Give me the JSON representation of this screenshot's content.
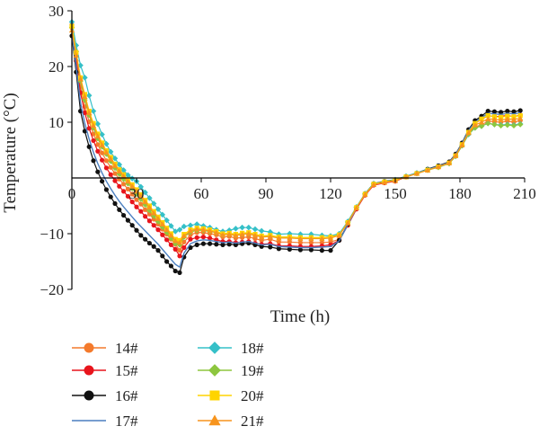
{
  "chart_data": {
    "type": "line",
    "xlabel": "Time (h)",
    "ylabel": "Temperature (°C)",
    "xlim": [
      0,
      210
    ],
    "ylim": [
      -20,
      30
    ],
    "x_ticks": [
      0,
      30,
      60,
      90,
      120,
      150,
      180,
      210
    ],
    "y_ticks": [
      -20,
      -10,
      10,
      20,
      30
    ],
    "x_tick_labels": [
      "0",
      "30",
      "60",
      "90",
      "120",
      "150",
      "180",
      "210"
    ],
    "y_tick_labels": [
      "−20",
      "−10",
      "10",
      "20",
      "30"
    ],
    "legend_position": "bottom-left",
    "x": [
      0,
      2,
      4,
      6,
      8,
      10,
      12,
      14,
      16,
      18,
      20,
      22,
      24,
      26,
      28,
      30,
      32,
      34,
      36,
      38,
      40,
      42,
      44,
      46,
      48,
      50,
      52,
      55,
      58,
      61,
      64,
      67,
      70,
      73,
      76,
      79,
      82,
      85,
      88,
      92,
      96,
      101,
      106,
      111,
      116,
      120,
      124,
      128,
      132,
      136,
      140,
      145,
      150,
      155,
      160,
      165,
      170,
      175,
      178,
      181,
      184,
      187,
      190,
      193,
      196,
      199,
      202,
      205,
      208
    ],
    "series": [
      {
        "name": "14#",
        "color": "#f47a2c",
        "marker": "circle",
        "values": [
          27.5,
          22.1,
          16.4,
          12.8,
          10.1,
          7.9,
          6.0,
          4.5,
          3.1,
          1.9,
          0.8,
          -0.2,
          -1.1,
          -2.0,
          -2.9,
          -3.9,
          -4.7,
          -5.7,
          -6.5,
          -7.4,
          -8.3,
          -9.2,
          -10.1,
          -11.0,
          -11.9,
          -13.0,
          -11.5,
          -10.2,
          -9.8,
          -9.8,
          -10.0,
          -10.2,
          -10.6,
          -10.5,
          -10.8,
          -10.7,
          -10.6,
          -10.9,
          -11.2,
          -11.0,
          -11.5,
          -11.5,
          -11.6,
          -11.6,
          -11.6,
          -11.5,
          -11.0,
          -8.5,
          -5.5,
          -3.0,
          -1.2,
          -0.8,
          -0.5,
          0.2,
          0.8,
          1.5,
          2.0,
          2.7,
          4.0,
          5.8,
          8.0,
          9.2,
          9.5,
          10.2,
          10.1,
          10.0,
          10.2,
          10.0,
          10.3
        ]
      },
      {
        "name": "15#",
        "color": "#e8141c",
        "marker": "circle",
        "values": [
          27.0,
          21.0,
          15.3,
          11.7,
          8.9,
          6.7,
          4.8,
          3.2,
          1.8,
          0.6,
          -0.5,
          -1.5,
          -2.4,
          -3.3,
          -4.3,
          -5.2,
          -6.0,
          -6.9,
          -7.7,
          -8.5,
          -9.3,
          -10.2,
          -11.1,
          -12.0,
          -12.8,
          -14.0,
          -12.5,
          -11.0,
          -10.7,
          -10.6,
          -10.8,
          -11.1,
          -11.4,
          -11.4,
          -11.6,
          -11.5,
          -11.4,
          -11.7,
          -11.9,
          -11.8,
          -12.2,
          -12.2,
          -12.3,
          -12.3,
          -12.2,
          -12.0,
          -11.2,
          -8.5,
          -5.6,
          -3.1,
          -1.3,
          -0.9,
          -0.6,
          0.2,
          0.8,
          1.5,
          2.1,
          2.8,
          4.1,
          6.0,
          8.3,
          9.8,
          10.5,
          11.2,
          11.0,
          11.1,
          11.2,
          11.0,
          11.3
        ]
      },
      {
        "name": "16#",
        "color": "#111111",
        "marker": "circle",
        "values": [
          25.5,
          19.0,
          12.0,
          8.4,
          5.6,
          3.1,
          1.1,
          -0.6,
          -2.1,
          -3.4,
          -4.6,
          -5.7,
          -6.7,
          -7.6,
          -8.5,
          -9.4,
          -10.3,
          -11.0,
          -11.7,
          -12.3,
          -13.0,
          -14.0,
          -15.0,
          -15.8,
          -16.7,
          -17.0,
          -14.2,
          -12.5,
          -12.0,
          -11.8,
          -11.8,
          -11.9,
          -12.0,
          -11.9,
          -12.0,
          -11.8,
          -11.7,
          -12.0,
          -12.3,
          -12.4,
          -12.7,
          -12.8,
          -12.9,
          -12.9,
          -13.0,
          -13.0,
          -11.2,
          -8.3,
          -5.3,
          -2.8,
          -1.0,
          -0.6,
          -0.3,
          0.3,
          0.9,
          1.6,
          2.2,
          2.9,
          4.3,
          6.3,
          8.7,
          10.3,
          11.1,
          12.0,
          11.9,
          11.8,
          12.0,
          11.9,
          12.1
        ]
      },
      {
        "name": "17#",
        "color": "#4a7fc1",
        "marker": "none",
        "values": [
          26.0,
          20.0,
          13.5,
          9.8,
          7.0,
          4.6,
          2.6,
          0.9,
          -0.6,
          -1.9,
          -3.1,
          -4.2,
          -5.2,
          -6.1,
          -7.0,
          -7.9,
          -8.7,
          -9.5,
          -10.3,
          -11.1,
          -11.9,
          -12.8,
          -13.7,
          -14.6,
          -15.5,
          -16.0,
          -13.5,
          -11.8,
          -11.3,
          -11.1,
          -11.2,
          -11.4,
          -11.6,
          -11.5,
          -11.7,
          -11.5,
          -11.4,
          -11.7,
          -12.0,
          -11.9,
          -12.3,
          -12.4,
          -12.5,
          -12.5,
          -12.4,
          -12.3,
          -11.3,
          -8.4,
          -5.4,
          -2.9,
          -1.1,
          -0.7,
          -0.4,
          0.3,
          0.9,
          1.5,
          2.1,
          2.8,
          4.2,
          6.2,
          8.5,
          10.0,
          10.8,
          11.6,
          11.5,
          11.4,
          11.6,
          11.5,
          11.7
        ]
      },
      {
        "name": "18#",
        "color": "#35c0c8",
        "marker": "diamond",
        "values": [
          28.0,
          23.8,
          20.2,
          18.0,
          14.8,
          12.0,
          9.7,
          7.8,
          6.1,
          4.7,
          3.5,
          2.4,
          1.4,
          0.5,
          -0.1,
          -0.6,
          -1.6,
          -2.6,
          -3.6,
          -4.6,
          -5.6,
          -6.6,
          -7.6,
          -8.6,
          -9.6,
          -9.3,
          -8.7,
          -8.5,
          -8.3,
          -8.6,
          -8.9,
          -9.3,
          -9.6,
          -9.4,
          -9.1,
          -8.9,
          -8.9,
          -9.2,
          -9.5,
          -9.7,
          -10.1,
          -10.0,
          -10.1,
          -10.1,
          -10.3,
          -10.4,
          -10.0,
          -7.8,
          -5.2,
          -2.8,
          -1.0,
          -0.7,
          -0.3,
          0.3,
          0.9,
          1.5,
          2.0,
          2.6,
          3.9,
          5.8,
          7.8,
          9.0,
          9.3,
          9.8,
          9.6,
          9.5,
          9.6,
          9.5,
          9.7
        ]
      },
      {
        "name": "19#",
        "color": "#8dc63f",
        "marker": "diamond",
        "values": [
          27.0,
          22.7,
          17.4,
          14.0,
          11.3,
          9.0,
          7.1,
          5.6,
          4.3,
          3.0,
          1.8,
          0.7,
          -0.2,
          -1.0,
          -1.9,
          -2.9,
          -3.8,
          -4.8,
          -5.8,
          -6.8,
          -7.8,
          -8.8,
          -9.8,
          -10.8,
          -11.8,
          -12.0,
          -10.6,
          -9.7,
          -9.4,
          -9.4,
          -9.6,
          -9.8,
          -10.2,
          -10.1,
          -10.3,
          -10.1,
          -10.0,
          -10.3,
          -10.5,
          -10.4,
          -10.6,
          -10.6,
          -10.7,
          -10.7,
          -10.7,
          -10.6,
          -10.2,
          -8.0,
          -5.3,
          -2.9,
          -1.1,
          -0.7,
          -0.4,
          0.2,
          0.8,
          1.4,
          1.9,
          2.6,
          3.9,
          5.8,
          7.9,
          9.0,
          9.3,
          9.8,
          9.6,
          9.4,
          9.5,
          9.4,
          9.6
        ]
      },
      {
        "name": "20#",
        "color": "#ffd400",
        "marker": "square",
        "values": [
          27.2,
          22.5,
          18.0,
          15.0,
          12.0,
          9.8,
          7.9,
          6.3,
          4.9,
          3.7,
          2.5,
          1.5,
          0.6,
          -0.3,
          -1.2,
          -2.1,
          -3.0,
          -4.0,
          -5.0,
          -6.0,
          -7.0,
          -8.0,
          -9.0,
          -10.0,
          -11.0,
          -11.2,
          -10.1,
          -9.3,
          -9.0,
          -9.1,
          -9.3,
          -9.6,
          -10.0,
          -9.9,
          -10.1,
          -9.9,
          -9.8,
          -10.1,
          -10.4,
          -10.3,
          -10.6,
          -10.6,
          -10.7,
          -10.7,
          -10.7,
          -10.6,
          -10.2,
          -8.0,
          -5.3,
          -2.9,
          -1.1,
          -0.7,
          -0.4,
          0.2,
          0.8,
          1.4,
          2.0,
          2.7,
          4.0,
          6.0,
          8.2,
          9.8,
          10.6,
          11.2,
          11.0,
          10.9,
          11.1,
          11.0,
          11.2
        ]
      },
      {
        "name": "21#",
        "color": "#f7941d",
        "marker": "triangle",
        "values": [
          26.5,
          22.0,
          17.8,
          14.6,
          11.7,
          9.4,
          7.5,
          5.9,
          4.6,
          3.4,
          2.2,
          1.2,
          0.3,
          -0.6,
          -1.5,
          -2.4,
          -3.3,
          -4.3,
          -5.3,
          -6.3,
          -7.3,
          -8.3,
          -9.3,
          -10.3,
          -11.3,
          -11.6,
          -10.4,
          -9.5,
          -9.2,
          -9.3,
          -9.5,
          -9.8,
          -10.2,
          -10.1,
          -10.3,
          -10.1,
          -10.0,
          -10.3,
          -10.6,
          -10.5,
          -10.8,
          -10.8,
          -10.9,
          -10.9,
          -10.9,
          -10.8,
          -10.3,
          -8.1,
          -5.4,
          -3.0,
          -1.2,
          -0.8,
          -0.5,
          0.2,
          0.8,
          1.4,
          2.0,
          2.7,
          4.0,
          5.9,
          8.1,
          9.5,
          10.0,
          10.6,
          10.5,
          10.4,
          10.6,
          10.5,
          10.7
        ]
      }
    ]
  }
}
